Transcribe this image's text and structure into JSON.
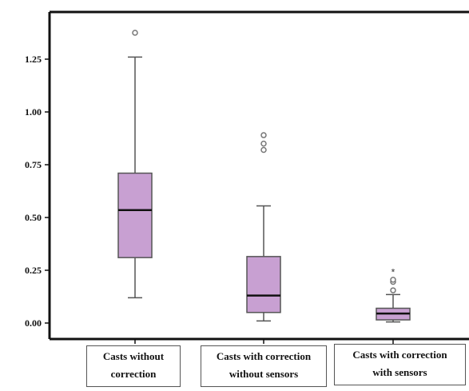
{
  "chart_data": {
    "type": "boxplot",
    "title": "",
    "xlabel": "",
    "ylabel": "",
    "ylim": [
      -0.07,
      1.45
    ],
    "yticks": [
      "0.00",
      "0.25",
      "0.50",
      "0.75",
      "1.00",
      "1.25"
    ],
    "grid": false,
    "legend": "none",
    "colors": {
      "box_fill": "#c8a0d2",
      "box_edge": "#555555",
      "median": "#111111",
      "outlier": "#777777"
    },
    "categories": [
      [
        "Casts without",
        "correction"
      ],
      [
        "Casts with correction",
        "without sensors"
      ],
      [
        "Casts with correction",
        "with sensors"
      ]
    ],
    "boxes": [
      {
        "whisker_low": 0.12,
        "q1": 0.31,
        "median": 0.535,
        "q3": 0.71,
        "whisker_high": 1.26,
        "outliers": [
          1.375
        ]
      },
      {
        "whisker_low": 0.01,
        "q1": 0.05,
        "median": 0.13,
        "q3": 0.315,
        "whisker_high": 0.555,
        "outliers": [
          0.82,
          0.85,
          0.89
        ]
      },
      {
        "whisker_low": 0.005,
        "q1": 0.015,
        "median": 0.045,
        "q3": 0.07,
        "whisker_high": 0.135,
        "outliers": [
          0.155,
          0.195,
          0.205
        ]
      }
    ],
    "extremes": [
      {
        "box": 2,
        "value": 0.245
      }
    ]
  }
}
